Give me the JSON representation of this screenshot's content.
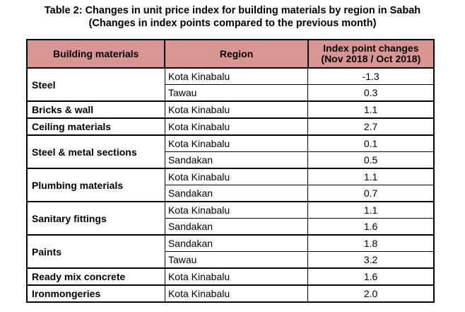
{
  "title_line1": "Table 2: Changes in unit price index for building materials by region in Sabah",
  "title_line2": "(Changes in index points compared to the previous month)",
  "header": {
    "col1": "Building materials",
    "col2": "Region",
    "col3_line1": "Index point changes",
    "col3_line2": "(Nov 2018 / Oct 2018)"
  },
  "header_color": "#d99594",
  "groups": [
    {
      "material": "Steel",
      "rows": [
        {
          "region": "Kota Kinabalu",
          "value": "-1.3"
        },
        {
          "region": "Tawau",
          "value": "0.3"
        }
      ]
    },
    {
      "material": "Bricks & wall",
      "rows": [
        {
          "region": "Kota Kinabalu",
          "value": "1.1"
        }
      ]
    },
    {
      "material": "Ceiling materials",
      "rows": [
        {
          "region": "Kota Kinabalu",
          "value": "2.7"
        }
      ]
    },
    {
      "material": "Steel & metal sections",
      "rows": [
        {
          "region": "Kota Kinabalu",
          "value": "0.1"
        },
        {
          "region": "Sandakan",
          "value": "0.5"
        }
      ]
    },
    {
      "material": "Plumbing materials",
      "rows": [
        {
          "region": "Kota Kinabalu",
          "value": "1.1"
        },
        {
          "region": "Sandakan",
          "value": "0.7"
        }
      ]
    },
    {
      "material": "Sanitary fittings",
      "rows": [
        {
          "region": "Kota Kinabalu",
          "value": "1.1"
        },
        {
          "region": "Sandakan",
          "value": "1.6"
        }
      ]
    },
    {
      "material": "Paints",
      "rows": [
        {
          "region": "Sandakan",
          "value": "1.8"
        },
        {
          "region": "Tawau",
          "value": "3.2"
        }
      ]
    },
    {
      "material": "Ready mix concrete",
      "rows": [
        {
          "region": "Kota Kinabalu",
          "value": "1.6"
        }
      ]
    },
    {
      "material": "Ironmongeries",
      "rows": [
        {
          "region": "Kota Kinabalu",
          "value": "2.0"
        }
      ]
    }
  ]
}
